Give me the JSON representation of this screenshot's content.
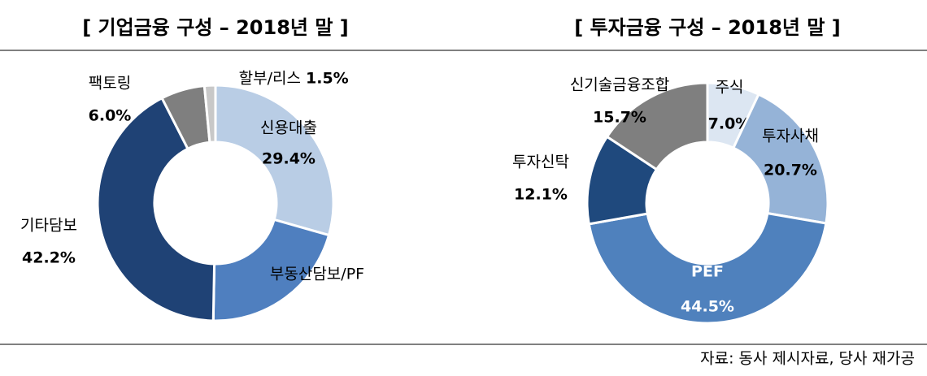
{
  "chart_data": [
    {
      "type": "donut",
      "title": "[ 기업금융 구성 – 2018년 말 ]",
      "categories": [
        "신용대출",
        "부동산담보/PF",
        "기타담보",
        "팩토링",
        "할부/리스"
      ],
      "values": [
        29.4,
        20.9,
        42.2,
        6.0,
        1.5
      ],
      "value_labels": [
        "29.4%",
        null,
        "42.2%",
        "6.0%",
        "1.5%"
      ],
      "colors": [
        "#b9cde5",
        "#4f7fbf",
        "#1f4275",
        "#7f7f7f",
        "#c8c8c8"
      ]
    },
    {
      "type": "donut",
      "title": "[ 투자금융 구성 – 2018년 말 ]",
      "categories": [
        "주식",
        "투자사채",
        "PEF",
        "투자신탁",
        "신기술금융조합"
      ],
      "values": [
        7.0,
        20.7,
        44.5,
        12.1,
        15.7
      ],
      "value_labels": [
        "7.0%",
        "20.7%",
        "44.5%",
        "12.1%",
        "15.7%"
      ],
      "colors": [
        "#dce6f2",
        "#95b3d7",
        "#4f81bd",
        "#1f497d",
        "#7f7f7f"
      ]
    }
  ],
  "source": "자료: 동사 제시자료, 당사 재가공"
}
